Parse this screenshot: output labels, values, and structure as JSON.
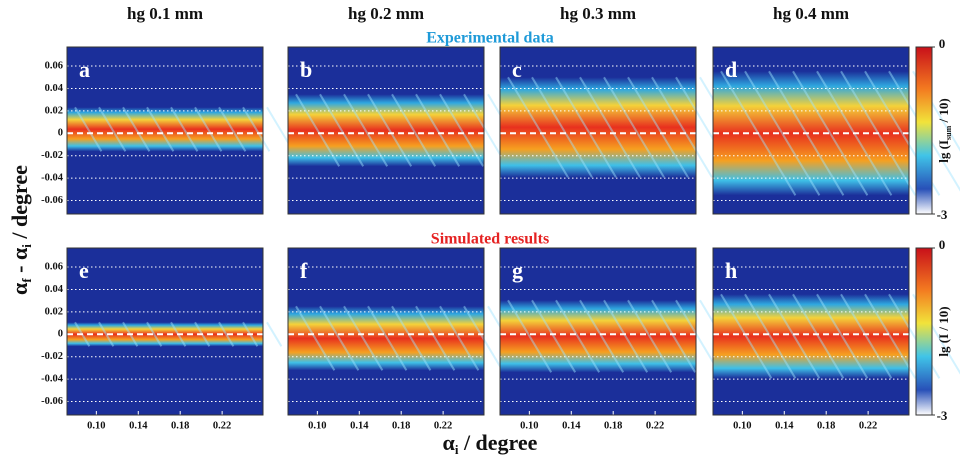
{
  "column_titles": [
    "hg 0.1 mm",
    "hg 0.2 mm",
    "hg 0.3 mm",
    "hg 0.4 mm"
  ],
  "row_titles": [
    "Experimental data",
    "Simulated results"
  ],
  "xlabel_parts": [
    "α",
    "i",
    " / degree"
  ],
  "ylabel_parts": [
    "α",
    "f",
    " - α",
    "i",
    " / degree"
  ],
  "colorbars": [
    {
      "label_parts": [
        "lg (I",
        "sum",
        " / 10)"
      ],
      "lim": [
        -3,
        0
      ],
      "ticks": [
        0,
        -3
      ]
    },
    {
      "label_parts": [
        "lg (I / 10)"
      ],
      "lim": [
        -3,
        0
      ],
      "ticks": [
        0,
        -3
      ]
    }
  ],
  "chart_data": [
    {
      "type": "heatmap",
      "title": "a",
      "xlim": [
        0.072,
        0.259
      ],
      "ylim": [
        -0.072,
        0.077
      ],
      "yticks": [
        0.06,
        0.04,
        0.02,
        0,
        -0.02,
        -0.04,
        -0.06
      ],
      "grid": true
    },
    {
      "type": "heatmap",
      "title": "b",
      "xlim": [
        0.072,
        0.259
      ],
      "ylim": [
        -0.072,
        0.077
      ],
      "yticks": [
        0.06,
        0.04,
        0.02,
        0,
        -0.02,
        -0.04,
        -0.06
      ],
      "grid": true
    },
    {
      "type": "heatmap",
      "title": "c",
      "xlim": [
        0.072,
        0.259
      ],
      "ylim": [
        -0.072,
        0.077
      ],
      "yticks": [
        0.06,
        0.04,
        0.02,
        0,
        -0.02,
        -0.04,
        -0.06
      ],
      "grid": true
    },
    {
      "type": "heatmap",
      "title": "d",
      "xlim": [
        0.072,
        0.259
      ],
      "ylim": [
        -0.072,
        0.077
      ],
      "yticks": [
        0.06,
        0.04,
        0.02,
        0,
        -0.02,
        -0.04,
        -0.06
      ],
      "grid": true
    },
    {
      "type": "heatmap",
      "title": "e",
      "xlim": [
        0.072,
        0.259
      ],
      "xticks": [
        {
          "value": 0.1,
          "label": "0.10"
        },
        0.14,
        0.18,
        0.22
      ],
      "ylim": [
        -0.072,
        0.077
      ],
      "yticks": [
        0.06,
        0.04,
        0.02,
        0,
        -0.02,
        -0.04,
        -0.06
      ],
      "grid": true
    },
    {
      "type": "heatmap",
      "title": "f",
      "xlim": [
        0.072,
        0.259
      ],
      "xticks": [
        {
          "value": 0.1,
          "label": "0.10"
        },
        0.14,
        0.18,
        0.22
      ],
      "ylim": [
        -0.072,
        0.077
      ],
      "yticks": [
        0.06,
        0.04,
        0.02,
        0,
        -0.02,
        -0.04,
        -0.06
      ],
      "grid": true
    },
    {
      "type": "heatmap",
      "title": "g",
      "xlim": [
        0.072,
        0.259
      ],
      "xticks": [
        {
          "value": 0.1,
          "label": "0.10"
        },
        0.14,
        0.18,
        0.22
      ],
      "ylim": [
        -0.072,
        0.077
      ],
      "yticks": [
        0.06,
        0.04,
        0.02,
        0,
        -0.02,
        -0.04,
        -0.06
      ],
      "grid": true
    },
    {
      "type": "heatmap",
      "title": "h",
      "xlim": [
        0.072,
        0.259
      ],
      "xticks": [
        {
          "value": 0.1,
          "label": "0.10"
        },
        0.14,
        0.18,
        0.22
      ],
      "ylim": [
        -0.072,
        0.077
      ],
      "yticks": [
        0.06,
        0.04,
        0.02,
        0,
        -0.02,
        -0.04,
        -0.06
      ],
      "grid": true
    }
  ]
}
